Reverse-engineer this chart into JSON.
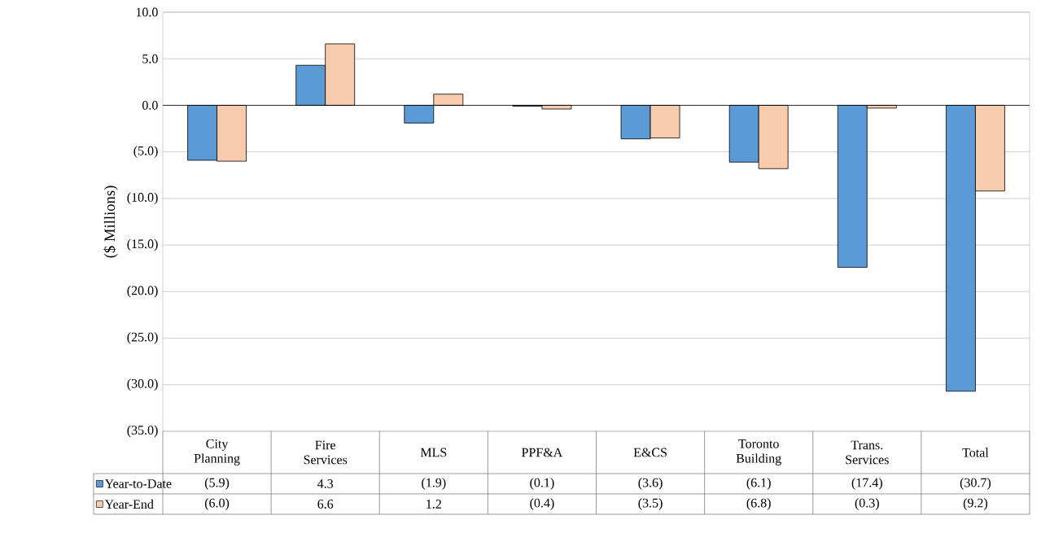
{
  "chart_data": {
    "type": "bar",
    "ylabel": "($ Millions)",
    "categories": [
      "City Planning",
      "Fire Services",
      "MLS",
      "PPF&A",
      "E&CS",
      "Toronto Building",
      "Trans. Services",
      "Total"
    ],
    "series": [
      {
        "name": "Year-to-Date",
        "color": "#5b9bd5",
        "values": [
          -5.9,
          4.3,
          -1.9,
          -0.1,
          -3.6,
          -6.1,
          -17.4,
          -30.7
        ],
        "value_labels": [
          "(5.9)",
          "4.3",
          "(1.9)",
          "(0.1)",
          "(3.6)",
          "(6.1)",
          "(17.4)",
          "(30.7)"
        ]
      },
      {
        "name": "Year-End",
        "color": "#f8cbad",
        "values": [
          -6.0,
          6.6,
          1.2,
          -0.4,
          -3.5,
          -6.8,
          -0.3,
          -9.2
        ],
        "value_labels": [
          "(6.0)",
          "6.6",
          "1.2",
          "(0.4)",
          "(3.5)",
          "(6.8)",
          "(0.3)",
          "(9.2)"
        ]
      }
    ],
    "ylim": [
      -35,
      10
    ],
    "yticks": [
      {
        "value": 10,
        "label": "10.0"
      },
      {
        "value": 5,
        "label": "5.0"
      },
      {
        "value": 0,
        "label": "0.0"
      },
      {
        "value": -5,
        "label": "(5.0)"
      },
      {
        "value": -10,
        "label": "(10.0)"
      },
      {
        "value": -15,
        "label": "(15.0)"
      },
      {
        "value": -20,
        "label": "(20.0)"
      },
      {
        "value": -25,
        "label": "(25.0)"
      },
      {
        "value": -30,
        "label": "(30.0)"
      },
      {
        "value": -35,
        "label": "(35.0)"
      }
    ],
    "grid": "y",
    "legend": "bottom"
  }
}
